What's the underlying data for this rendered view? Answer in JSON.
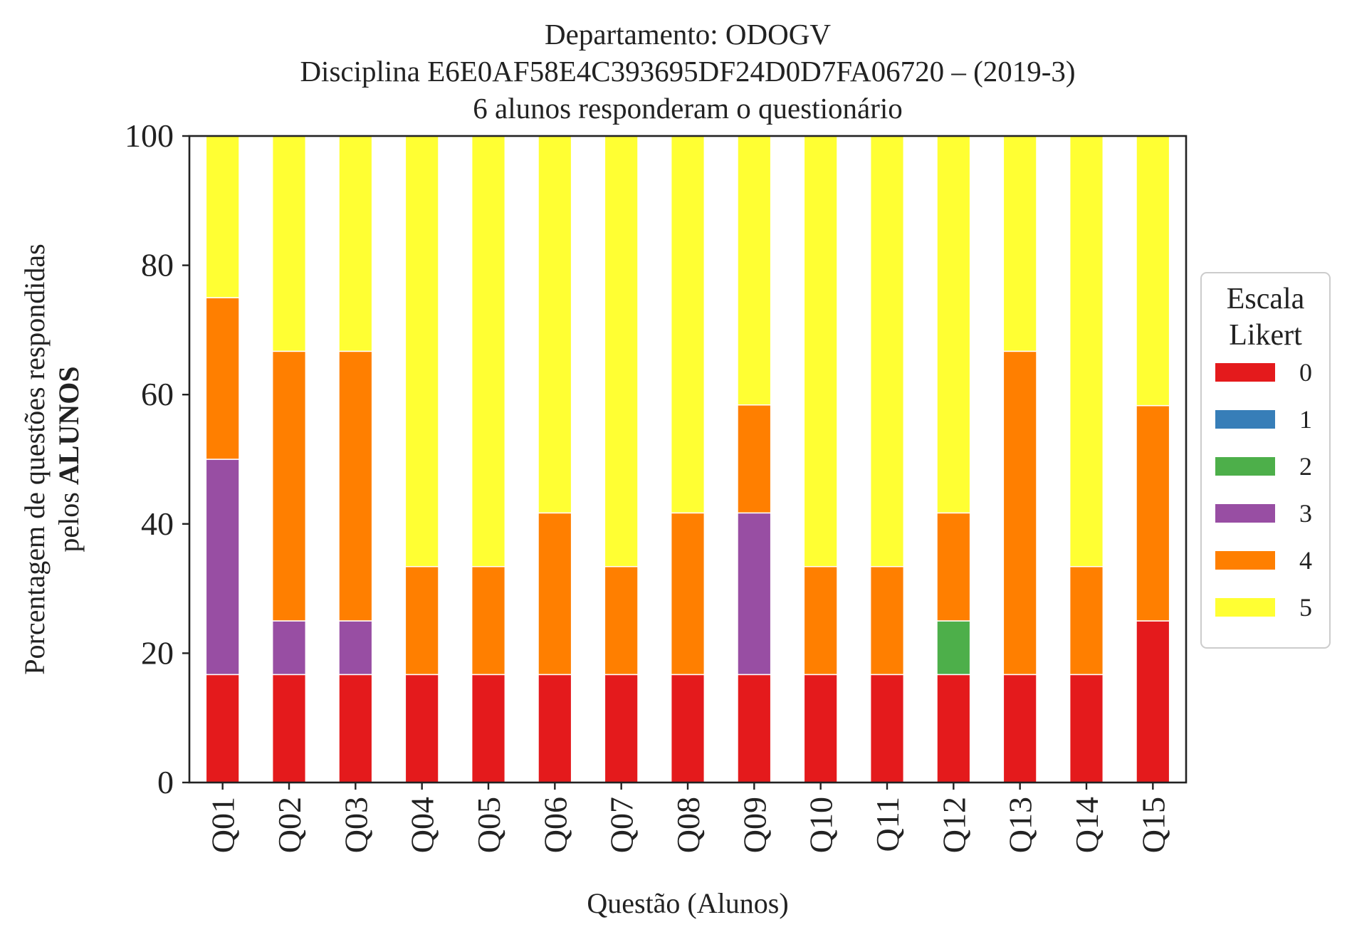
{
  "chart_data": {
    "type": "bar",
    "stacked": true,
    "title_lines": [
      "Departamento: ODOGV",
      "Disciplina E6E0AF58E4C393695DF24D0D7FA06720 – (2019-3)",
      "6 alunos responderam o questionário"
    ],
    "xlabel": "Questão (Alunos)",
    "ylabel_line1": "Porcentagem de questões respondidas",
    "ylabel_line2_prefix": "pelos ",
    "ylabel_line2_bold": "ALUNOS",
    "ylim": [
      0,
      100
    ],
    "yticks": [
      "0",
      "20",
      "40",
      "60",
      "80",
      "100"
    ],
    "categories": [
      "Q01",
      "Q02",
      "Q03",
      "Q04",
      "Q05",
      "Q06",
      "Q07",
      "Q08",
      "Q09",
      "Q10",
      "Q11",
      "Q12",
      "Q13",
      "Q14",
      "Q15"
    ],
    "legend_title_lines": [
      "Escala",
      "Likert"
    ],
    "legend_position": "right",
    "grid": false,
    "series": [
      {
        "name": "0",
        "color": "#e41a1c",
        "values": [
          16.7,
          16.7,
          16.7,
          16.7,
          16.7,
          16.7,
          16.7,
          16.7,
          16.7,
          16.7,
          16.7,
          16.7,
          16.7,
          16.7,
          25.0
        ]
      },
      {
        "name": "1",
        "color": "#377eb8",
        "values": [
          0,
          0,
          0,
          0,
          0,
          0,
          0,
          0,
          0,
          0,
          0,
          0,
          0,
          0,
          0
        ]
      },
      {
        "name": "2",
        "color": "#4daf4a",
        "values": [
          0,
          0,
          0,
          0,
          0,
          0,
          0,
          0,
          0,
          0,
          0,
          8.3,
          0,
          0,
          0
        ]
      },
      {
        "name": "3",
        "color": "#984ea3",
        "values": [
          33.3,
          8.3,
          8.3,
          0,
          0,
          0,
          0,
          0,
          25.0,
          0,
          0,
          0,
          0,
          0,
          0
        ]
      },
      {
        "name": "4",
        "color": "#ff7f00",
        "values": [
          25.0,
          41.7,
          41.7,
          16.7,
          16.7,
          25.0,
          16.7,
          25.0,
          16.7,
          16.7,
          16.7,
          16.7,
          50.0,
          16.7,
          33.3
        ]
      },
      {
        "name": "5",
        "color": "#ffff33",
        "values": [
          25.0,
          33.3,
          33.3,
          66.7,
          66.7,
          58.3,
          66.7,
          58.3,
          41.7,
          66.7,
          66.7,
          58.3,
          33.3,
          66.7,
          41.7
        ]
      }
    ]
  }
}
